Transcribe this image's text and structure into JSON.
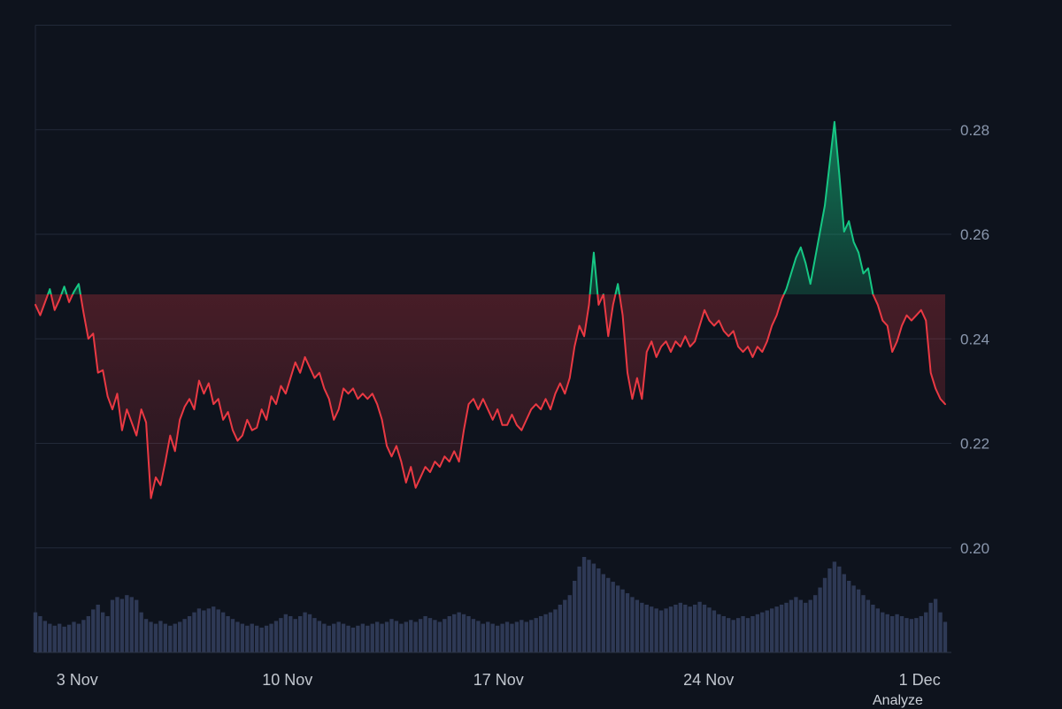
{
  "page": {
    "background": "#0e131d"
  },
  "watermark": {
    "label": "Analyze"
  },
  "chart_data": {
    "type": "area",
    "title": "",
    "xlabel": "",
    "ylabel": "",
    "ylim": [
      0.18,
      0.3
    ],
    "baseline": 0.2485,
    "grid": true,
    "legend": "none",
    "y_ticks": [
      {
        "label": "0.28",
        "value": 0.28
      },
      {
        "label": "0.26",
        "value": 0.26
      },
      {
        "label": "0.24",
        "value": 0.24
      },
      {
        "label": "0.22",
        "value": 0.22
      },
      {
        "label": "0.20",
        "value": 0.2
      }
    ],
    "x_ticks": [
      {
        "label": "3 Nov",
        "pos": 0.046
      },
      {
        "label": "10 Nov",
        "pos": 0.277
      },
      {
        "label": "17 Nov",
        "pos": 0.509
      },
      {
        "label": "24 Nov",
        "pos": 0.74
      },
      {
        "label": "1 Dec",
        "pos": 0.972
      }
    ],
    "price": [
      0.2465,
      0.2445,
      0.247,
      0.2495,
      0.2455,
      0.2475,
      0.25,
      0.247,
      0.249,
      0.2505,
      0.245,
      0.24,
      0.241,
      0.2335,
      0.234,
      0.229,
      0.2265,
      0.2295,
      0.2225,
      0.2265,
      0.224,
      0.2215,
      0.2265,
      0.224,
      0.2095,
      0.2135,
      0.212,
      0.2165,
      0.2215,
      0.2185,
      0.2245,
      0.227,
      0.2285,
      0.2265,
      0.232,
      0.2295,
      0.2315,
      0.2275,
      0.2285,
      0.2245,
      0.226,
      0.2225,
      0.2205,
      0.2215,
      0.2245,
      0.2225,
      0.223,
      0.2265,
      0.2245,
      0.229,
      0.2275,
      0.231,
      0.2295,
      0.2325,
      0.2355,
      0.2335,
      0.2365,
      0.2345,
      0.2325,
      0.2335,
      0.2305,
      0.2285,
      0.2245,
      0.2265,
      0.2305,
      0.2295,
      0.2305,
      0.2285,
      0.2295,
      0.2285,
      0.2295,
      0.2275,
      0.2245,
      0.2195,
      0.2175,
      0.2195,
      0.2165,
      0.2125,
      0.2155,
      0.2115,
      0.2135,
      0.2155,
      0.2145,
      0.2165,
      0.2155,
      0.2175,
      0.2165,
      0.2185,
      0.2165,
      0.2225,
      0.2275,
      0.2285,
      0.2265,
      0.2285,
      0.2265,
      0.2245,
      0.2265,
      0.2235,
      0.2235,
      0.2255,
      0.2235,
      0.2225,
      0.2245,
      0.2265,
      0.2275,
      0.2265,
      0.2285,
      0.2265,
      0.2295,
      0.2315,
      0.2295,
      0.2325,
      0.2385,
      0.2425,
      0.2405,
      0.2465,
      0.2565,
      0.2465,
      0.2485,
      0.2405,
      0.2465,
      0.2505,
      0.2445,
      0.2335,
      0.2285,
      0.2325,
      0.2285,
      0.2375,
      0.2395,
      0.2365,
      0.2385,
      0.2395,
      0.2375,
      0.2395,
      0.2385,
      0.2405,
      0.2385,
      0.2395,
      0.2425,
      0.2455,
      0.2435,
      0.2425,
      0.2435,
      0.2415,
      0.2405,
      0.2415,
      0.2385,
      0.2375,
      0.2385,
      0.2365,
      0.2385,
      0.2375,
      0.2395,
      0.2425,
      0.2445,
      0.2475,
      0.2495,
      0.2525,
      0.2555,
      0.2575,
      0.2545,
      0.2505,
      0.2555,
      0.2605,
      0.2655,
      0.2735,
      0.2815,
      0.2715,
      0.2605,
      0.2625,
      0.2585,
      0.2565,
      0.2525,
      0.2535,
      0.2485,
      0.2465,
      0.2435,
      0.2425,
      0.2375,
      0.2395,
      0.2425,
      0.2445,
      0.2435,
      0.2445,
      0.2455,
      0.2435,
      0.2335,
      0.2305,
      0.2285,
      0.2275
    ],
    "volume": [
      0.42,
      0.38,
      0.33,
      0.3,
      0.28,
      0.3,
      0.27,
      0.29,
      0.32,
      0.3,
      0.34,
      0.38,
      0.45,
      0.5,
      0.42,
      0.38,
      0.55,
      0.58,
      0.56,
      0.6,
      0.58,
      0.55,
      0.42,
      0.35,
      0.32,
      0.3,
      0.33,
      0.3,
      0.28,
      0.3,
      0.32,
      0.35,
      0.38,
      0.42,
      0.46,
      0.44,
      0.46,
      0.48,
      0.45,
      0.42,
      0.38,
      0.35,
      0.32,
      0.3,
      0.28,
      0.3,
      0.28,
      0.26,
      0.28,
      0.3,
      0.33,
      0.36,
      0.4,
      0.38,
      0.35,
      0.38,
      0.42,
      0.4,
      0.36,
      0.33,
      0.3,
      0.28,
      0.3,
      0.32,
      0.3,
      0.28,
      0.26,
      0.28,
      0.3,
      0.28,
      0.3,
      0.32,
      0.3,
      0.32,
      0.35,
      0.33,
      0.3,
      0.32,
      0.34,
      0.32,
      0.35,
      0.38,
      0.36,
      0.34,
      0.32,
      0.35,
      0.38,
      0.4,
      0.42,
      0.4,
      0.38,
      0.35,
      0.33,
      0.3,
      0.32,
      0.3,
      0.28,
      0.3,
      0.32,
      0.3,
      0.32,
      0.34,
      0.32,
      0.34,
      0.36,
      0.38,
      0.4,
      0.42,
      0.45,
      0.5,
      0.55,
      0.6,
      0.75,
      0.9,
      1.0,
      0.97,
      0.93,
      0.88,
      0.82,
      0.78,
      0.74,
      0.7,
      0.66,
      0.62,
      0.58,
      0.55,
      0.52,
      0.5,
      0.48,
      0.46,
      0.44,
      0.46,
      0.48,
      0.5,
      0.52,
      0.5,
      0.48,
      0.5,
      0.53,
      0.5,
      0.47,
      0.44,
      0.4,
      0.38,
      0.36,
      0.34,
      0.36,
      0.38,
      0.36,
      0.38,
      0.4,
      0.42,
      0.44,
      0.46,
      0.48,
      0.5,
      0.52,
      0.55,
      0.58,
      0.55,
      0.52,
      0.55,
      0.6,
      0.68,
      0.78,
      0.88,
      0.95,
      0.9,
      0.82,
      0.75,
      0.7,
      0.66,
      0.6,
      0.55,
      0.5,
      0.46,
      0.42,
      0.4,
      0.38,
      0.4,
      0.38,
      0.36,
      0.35,
      0.36,
      0.38,
      0.42,
      0.52,
      0.56,
      0.42,
      0.32
    ],
    "colors": {
      "up": "#16c784",
      "down": "#ea3943",
      "volume": "#303b58",
      "grid": "#222a39",
      "axis_line": "#2c3445",
      "axis_text": "#8a97ad",
      "x_text": "#c2c7cf"
    }
  }
}
